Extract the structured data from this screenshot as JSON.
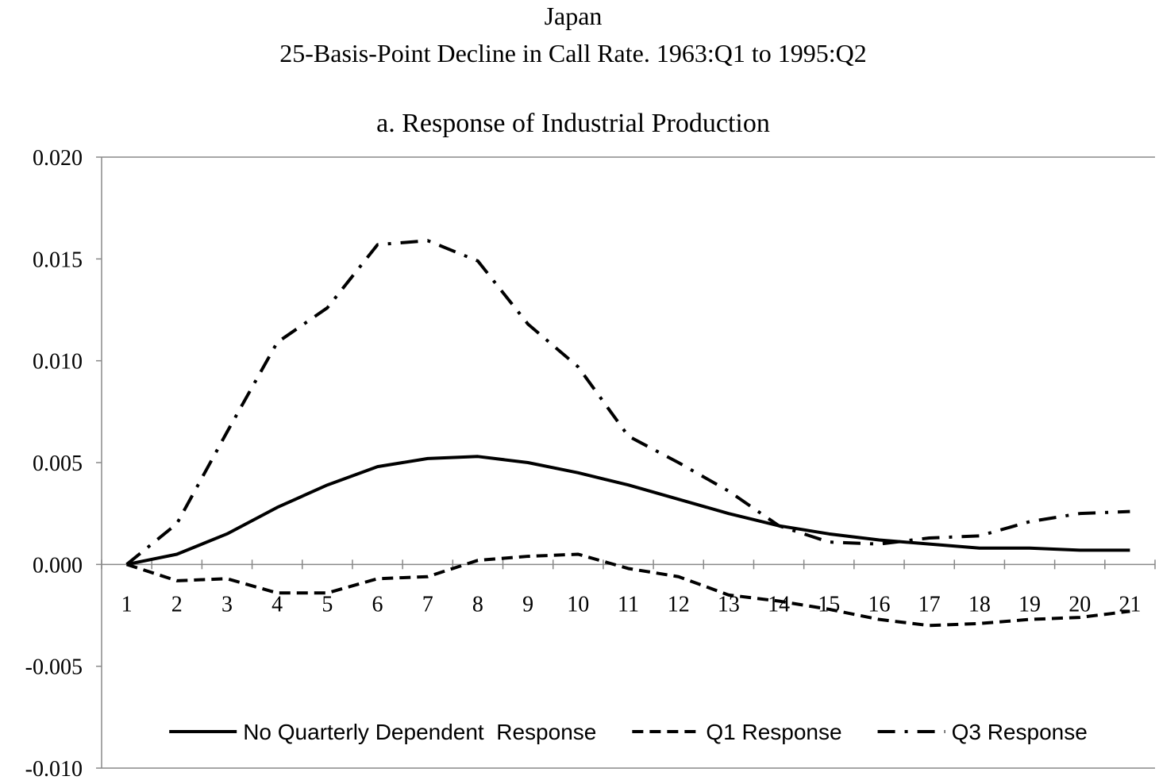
{
  "chart_data": {
    "type": "line",
    "title": "Japan",
    "subtitle": "25-Basis-Point Decline in Call Rate. 1963:Q1 to 1995:Q2",
    "panel_title": "a. Response of Industrial Production",
    "categories": [
      "1",
      "2",
      "3",
      "4",
      "5",
      "6",
      "7",
      "8",
      "9",
      "10",
      "11",
      "12",
      "13",
      "14",
      "15",
      "16",
      "17",
      "18",
      "19",
      "20",
      "21"
    ],
    "series": [
      {
        "name": "No Quarterly Dependent  Response",
        "color": "#000000",
        "dash": "solid",
        "values": [
          0,
          0.0005,
          0.0015,
          0.0028,
          0.0039,
          0.0048,
          0.0052,
          0.0053,
          0.005,
          0.0045,
          0.0039,
          0.0032,
          0.0025,
          0.0019,
          0.0015,
          0.0012,
          0.001,
          0.0008,
          0.0008,
          0.0007,
          0.0007
        ]
      },
      {
        "name": "Q1 Response",
        "color": "#000000",
        "dash": "dashed",
        "values": [
          0,
          -0.0008,
          -0.0007,
          -0.0014,
          -0.0014,
          -0.0007,
          -0.0006,
          0.0002,
          0.0004,
          0.0005,
          -0.0002,
          -0.0006,
          -0.0015,
          -0.0018,
          -0.0022,
          -0.0027,
          -0.003,
          -0.0029,
          -0.0027,
          -0.0026,
          -0.0023
        ]
      },
      {
        "name": "Q3 Response",
        "color": "#000000",
        "dash": "dashdot",
        "values": [
          0,
          0.002,
          0.0065,
          0.0109,
          0.0126,
          0.0157,
          0.0159,
          0.0149,
          0.0118,
          0.0097,
          0.0063,
          0.005,
          0.0036,
          0.0019,
          0.0011,
          0.001,
          0.0013,
          0.0014,
          0.0021,
          0.0025,
          0.0026
        ]
      }
    ],
    "ylim": [
      -0.01,
      0.02
    ],
    "yticks": [
      {
        "value": -0.01,
        "label": "-0.010"
      },
      {
        "value": -0.005,
        "label": "-0.005"
      },
      {
        "value": 0,
        "label": "0.000"
      },
      {
        "value": 0.005,
        "label": "0.005"
      },
      {
        "value": 0.01,
        "label": "0.010"
      },
      {
        "value": 0.015,
        "label": "0.015"
      },
      {
        "value": 0.02,
        "label": "0.020"
      }
    ],
    "grid": false,
    "legend": "bottom"
  }
}
